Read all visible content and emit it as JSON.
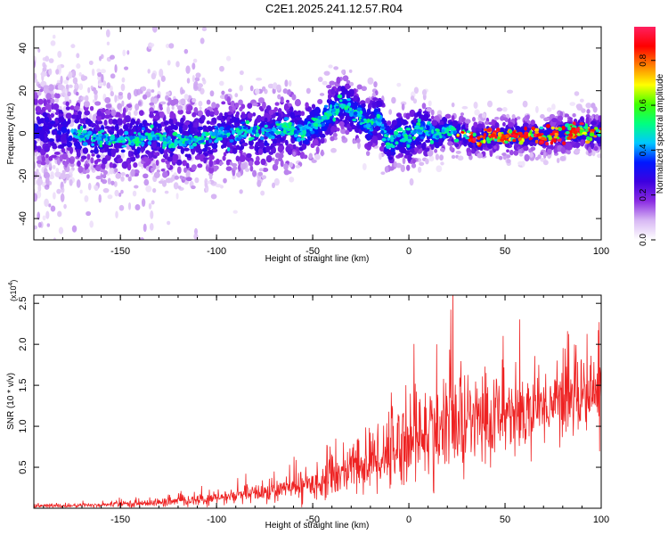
{
  "title": "C2E1.2025.241.12.57.R04",
  "chart_data": [
    {
      "type": "heatmap",
      "name": "spectrogram",
      "xlabel": "Height of straight line (km)",
      "ylabel": "Frequency (Hz)",
      "xlim": [
        -195,
        100
      ],
      "ylim": [
        -50,
        50
      ],
      "xticks": [
        -150,
        -100,
        -50,
        0,
        50,
        100
      ],
      "xtick_labels": [
        "-150",
        "-100",
        "-50",
        "0",
        "50",
        "100"
      ],
      "yticks": [
        -40,
        -20,
        0,
        20,
        40
      ],
      "ytick_labels": [
        "-40",
        "-20",
        "0",
        "20",
        "40"
      ],
      "colorbar": {
        "label": "Normalized spectral amplitude",
        "range": [
          0,
          0.95
        ],
        "ticks": [
          0.0,
          0.2,
          0.4,
          0.6,
          0.8
        ],
        "tick_labels": [
          "0.0",
          "0.2",
          "0.4",
          "0.6",
          "0.8"
        ],
        "colormap": [
          "#ffffff",
          "#d8b8f4",
          "#8a2be2",
          "#3d00e0",
          "#0018ff",
          "#00c8ff",
          "#00ff80",
          "#40ff00",
          "#ffff00",
          "#ff8000",
          "#ff0000",
          "#ff2060"
        ]
      },
      "ridge": {
        "x": [
          -195,
          -180,
          -165,
          -150,
          -135,
          -120,
          -105,
          -95,
          -85,
          -75,
          -65,
          -55,
          -50,
          -45,
          -40,
          -35,
          -32,
          -28,
          -25,
          -22,
          -20,
          -18,
          -16,
          -14,
          -12,
          -10,
          -8,
          -5,
          0,
          5,
          10,
          15,
          20,
          25,
          30,
          35,
          40,
          45,
          50,
          55,
          60,
          65,
          70,
          75,
          80,
          85,
          90,
          95,
          100
        ],
        "y": [
          2,
          1,
          -2,
          -4,
          -1,
          -4,
          -2,
          0,
          1,
          -1,
          3,
          0,
          4,
          6,
          10,
          14,
          12,
          9,
          7,
          5,
          3,
          6,
          8,
          4,
          -2,
          -5,
          -3,
          0,
          -3,
          2,
          1,
          -1,
          2,
          0,
          -1,
          -3,
          -2,
          -1,
          -2,
          -1,
          -2,
          -1,
          -1,
          -1,
          0,
          0,
          1,
          0,
          1
        ]
      }
    },
    {
      "type": "line",
      "name": "snr",
      "xlabel": "Height of straight line (km)",
      "ylabel": "SNR (10 * v/v)",
      "multiplier_label": "(x10",
      "multiplier_exponent": "4",
      "multiplier_close": ")",
      "xlim": [
        -195,
        100
      ],
      "ylim": [
        0,
        26000
      ],
      "xticks": [
        -150,
        -100,
        -50,
        0,
        50,
        100
      ],
      "xtick_labels": [
        "-150",
        "-100",
        "-50",
        "0",
        "50",
        "100"
      ],
      "yticks": [
        5000,
        10000,
        15000,
        20000,
        25000
      ],
      "ytick_labels": [
        "0.5",
        "1.0",
        "1.5",
        "2.0",
        "2.5"
      ],
      "color": "#ee2222",
      "envelope": {
        "x": [
          -195,
          -175,
          -150,
          -130,
          -110,
          -100,
          -90,
          -80,
          -70,
          -60,
          -50,
          -45,
          -40,
          -35,
          -30,
          -25,
          -20,
          -15,
          -10,
          -5,
          0,
          5,
          10,
          15,
          20,
          25,
          30,
          35,
          40,
          45,
          50,
          55,
          60,
          65,
          70,
          75,
          80,
          85,
          90,
          95,
          100
        ],
        "base": [
          300,
          300,
          500,
          700,
          1000,
          1200,
          1500,
          1800,
          2100,
          2600,
          3000,
          3400,
          3800,
          4400,
          4800,
          5200,
          5600,
          6400,
          7200,
          7800,
          8400,
          8900,
          9200,
          9600,
          9900,
          10200,
          10400,
          10700,
          11000,
          11200,
          11500,
          11800,
          12000,
          12300,
          12600,
          12900,
          13200,
          13600,
          13800,
          14000,
          14200
        ],
        "spread": [
          300,
          300,
          400,
          600,
          800,
          900,
          1100,
          1300,
          1500,
          1800,
          2200,
          2400,
          2800,
          3300,
          3800,
          4200,
          4600,
          5200,
          5800,
          6200,
          6600,
          6800,
          7000,
          7200,
          7300,
          7400,
          7400,
          7200,
          7000,
          6600,
          6000,
          5600,
          5200,
          5000,
          4800,
          4800,
          5000,
          5200,
          5400,
          5600,
          5800
        ]
      }
    }
  ]
}
